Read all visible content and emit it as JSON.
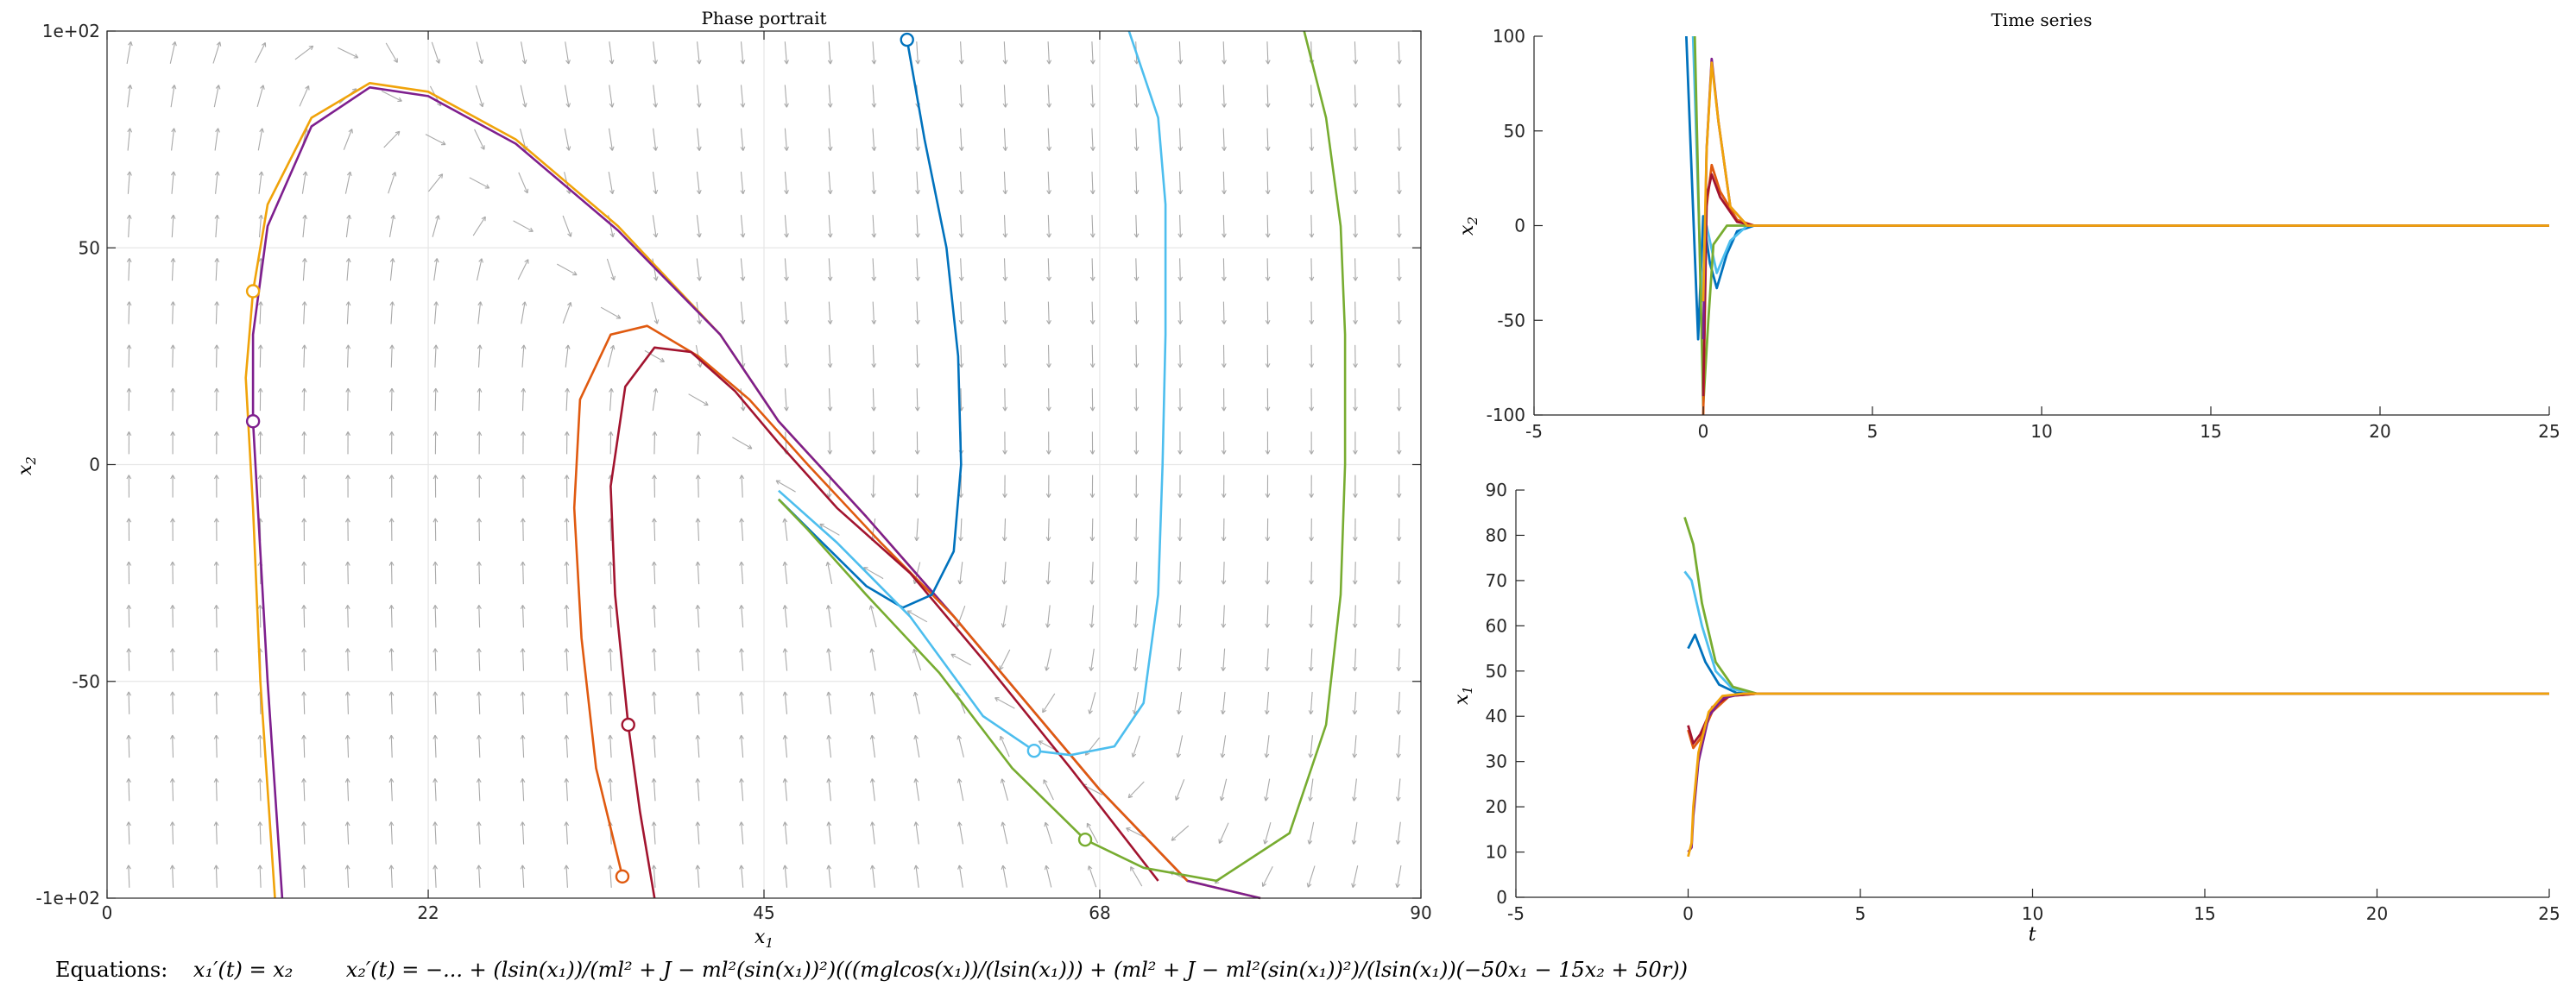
{
  "chart_data": [
    {
      "type": "line",
      "title": "Phase portrait",
      "xlabel": "x1",
      "ylabel": "x2",
      "xlim": [
        0,
        90
      ],
      "ylim": [
        -100,
        100
      ],
      "x_ticks": [
        0,
        22,
        45,
        68,
        90
      ],
      "y_ticks": [
        -100,
        -50,
        0,
        50,
        100
      ],
      "x_tick_labels": [
        "0",
        "22",
        "45",
        "68",
        "90"
      ],
      "y_tick_labels": [
        "-1e+02",
        "-50",
        "0",
        "50",
        "1e+02"
      ],
      "grid": true,
      "vector_field": true,
      "series": [
        {
          "color": "#f0a30a",
          "start": [
            10,
            40
          ],
          "points": [
            [
              11.5,
              -100
            ],
            [
              10.5,
              -50
            ],
            [
              10,
              -10
            ],
            [
              9.5,
              20
            ],
            [
              10,
              40
            ],
            [
              11,
              60
            ],
            [
              14,
              80
            ],
            [
              18,
              88
            ],
            [
              22,
              86
            ],
            [
              28,
              75
            ],
            [
              35,
              55
            ],
            [
              42,
              30
            ],
            [
              46,
              10
            ],
            [
              52,
              -12
            ],
            [
              58,
              -35
            ],
            [
              63,
              -55
            ],
            [
              68,
              -75
            ],
            [
              74,
              -96
            ],
            [
              79,
              -100
            ]
          ]
        },
        {
          "color": "#7e1f8e",
          "start": [
            10,
            10
          ],
          "points": [
            [
              12,
              -100
            ],
            [
              11,
              -50
            ],
            [
              10,
              10
            ],
            [
              10,
              30
            ],
            [
              11,
              55
            ],
            [
              14,
              78
            ],
            [
              18,
              87
            ],
            [
              22,
              85
            ],
            [
              28,
              74
            ],
            [
              35,
              54
            ],
            [
              42,
              30
            ],
            [
              46,
              10
            ],
            [
              52,
              -12
            ],
            [
              58,
              -35
            ],
            [
              63,
              -55
            ],
            [
              68,
              -75
            ],
            [
              74,
              -96
            ],
            [
              79,
              -100
            ]
          ]
        },
        {
          "color": "#e05a10",
          "start": [
            35.3,
            -95
          ],
          "points": [
            [
              35.3,
              -95
            ],
            [
              33.5,
              -70
            ],
            [
              32.5,
              -40
            ],
            [
              32,
              -10
            ],
            [
              32.4,
              15
            ],
            [
              34.5,
              30
            ],
            [
              37,
              32
            ],
            [
              40.5,
              25
            ],
            [
              44,
              15
            ],
            [
              48,
              0
            ],
            [
              53,
              -18
            ],
            [
              58,
              -35
            ],
            [
              63,
              -55
            ],
            [
              68,
              -75
            ],
            [
              74,
              -96
            ]
          ]
        },
        {
          "color": "#a2142f",
          "start": [
            35.7,
            -60
          ],
          "points": [
            [
              37.5,
              -100
            ],
            [
              36.5,
              -80
            ],
            [
              35.7,
              -60
            ],
            [
              34.8,
              -30
            ],
            [
              34.5,
              -5
            ],
            [
              35.5,
              18
            ],
            [
              37.5,
              27
            ],
            [
              40,
              26
            ],
            [
              43,
              17
            ],
            [
              46,
              5
            ],
            [
              50,
              -10
            ],
            [
              55,
              -25
            ],
            [
              60,
              -45
            ],
            [
              66,
              -70
            ],
            [
              72,
              -96
            ]
          ]
        },
        {
          "color": "#0072bd",
          "start": [
            54.8,
            98
          ],
          "points": [
            [
              54.8,
              98
            ],
            [
              56,
              75
            ],
            [
              57.5,
              50
            ],
            [
              58.3,
              25
            ],
            [
              58.5,
              0
            ],
            [
              58,
              -20
            ],
            [
              56.5,
              -30
            ],
            [
              54.5,
              -33
            ],
            [
              52,
              -28
            ],
            [
              49,
              -18
            ],
            [
              46,
              -8
            ]
          ]
        },
        {
          "color": "#4dbeee",
          "start": [
            63.5,
            -66
          ],
          "points": [
            [
              70,
              100
            ],
            [
              72,
              80
            ],
            [
              72.5,
              60
            ],
            [
              72.5,
              30
            ],
            [
              72.3,
              0
            ],
            [
              72,
              -30
            ],
            [
              71,
              -55
            ],
            [
              69,
              -65
            ],
            [
              66,
              -67
            ],
            [
              63.5,
              -66
            ],
            [
              60,
              -58
            ],
            [
              55,
              -35
            ],
            [
              50,
              -18
            ],
            [
              46,
              -6
            ]
          ]
        },
        {
          "color": "#77ac30",
          "start": [
            67,
            -86.5
          ],
          "points": [
            [
              82,
              100
            ],
            [
              83.5,
              80
            ],
            [
              84.5,
              55
            ],
            [
              84.8,
              30
            ],
            [
              84.8,
              0
            ],
            [
              84.5,
              -30
            ],
            [
              83.5,
              -60
            ],
            [
              81,
              -85
            ],
            [
              76,
              -96
            ],
            [
              71,
              -93
            ],
            [
              67,
              -86.5
            ],
            [
              62,
              -70
            ],
            [
              57,
              -48
            ],
            [
              52,
              -30
            ],
            [
              48,
              -15
            ],
            [
              46,
              -8
            ]
          ]
        }
      ]
    },
    {
      "type": "line",
      "title": "Time series",
      "xlabel": "",
      "ylabel": "x2",
      "xlim": [
        -5,
        25
      ],
      "ylim": [
        -100,
        100
      ],
      "x_ticks": [
        -5,
        0,
        5,
        10,
        15,
        20,
        25
      ],
      "y_ticks": [
        -100,
        -50,
        0,
        50,
        100
      ],
      "grid": false,
      "series": [
        {
          "color": "#0072bd",
          "points": [
            [
              -0.5,
              100
            ],
            [
              -0.15,
              -60
            ],
            [
              0,
              5
            ],
            [
              0.2,
              -20
            ],
            [
              0.4,
              -33
            ],
            [
              0.7,
              -15
            ],
            [
              1.0,
              -3
            ],
            [
              1.5,
              0
            ],
            [
              25,
              0
            ]
          ]
        },
        {
          "color": "#4dbeee",
          "points": [
            [
              -0.3,
              100
            ],
            [
              -0.05,
              -40
            ],
            [
              0.1,
              0
            ],
            [
              0.4,
              -25
            ],
            [
              0.8,
              -8
            ],
            [
              1.3,
              0
            ],
            [
              25,
              0
            ]
          ]
        },
        {
          "color": "#77ac30",
          "points": [
            [
              -0.25,
              100
            ],
            [
              0.0,
              -95
            ],
            [
              0.15,
              -50
            ],
            [
              0.3,
              -10
            ],
            [
              0.7,
              0
            ],
            [
              25,
              0
            ]
          ]
        },
        {
          "color": "#e05a10",
          "points": [
            [
              0.0,
              -100
            ],
            [
              0.1,
              10
            ],
            [
              0.25,
              32
            ],
            [
              0.5,
              18
            ],
            [
              1.0,
              3
            ],
            [
              1.5,
              0
            ],
            [
              25,
              0
            ]
          ]
        },
        {
          "color": "#a2142f",
          "points": [
            [
              0.0,
              -90
            ],
            [
              0.1,
              15
            ],
            [
              0.25,
              27
            ],
            [
              0.5,
              15
            ],
            [
              1.0,
              2
            ],
            [
              1.5,
              0
            ],
            [
              25,
              0
            ]
          ]
        },
        {
          "color": "#7e1f8e",
          "points": [
            [
              0.0,
              -60
            ],
            [
              0.1,
              40
            ],
            [
              0.25,
              88
            ],
            [
              0.45,
              55
            ],
            [
              0.8,
              10
            ],
            [
              1.3,
              0
            ],
            [
              25,
              0
            ]
          ]
        },
        {
          "color": "#f0a30a",
          "points": [
            [
              0.0,
              -40
            ],
            [
              0.1,
              40
            ],
            [
              0.25,
              86
            ],
            [
              0.45,
              55
            ],
            [
              0.8,
              10
            ],
            [
              1.3,
              0
            ],
            [
              25,
              0
            ]
          ]
        }
      ]
    },
    {
      "type": "line",
      "title": "",
      "xlabel": "t",
      "ylabel": "x1",
      "xlim": [
        -5,
        25
      ],
      "ylim": [
        0,
        90
      ],
      "x_ticks": [
        -5,
        0,
        5,
        10,
        15,
        20,
        25
      ],
      "y_ticks": [
        0,
        10,
        20,
        30,
        40,
        50,
        60,
        70,
        80,
        90
      ],
      "grid": false,
      "series": [
        {
          "color": "#0072bd",
          "points": [
            [
              0,
              55
            ],
            [
              0.2,
              58
            ],
            [
              0.5,
              52
            ],
            [
              0.9,
              47
            ],
            [
              1.4,
              45.2
            ],
            [
              2,
              45
            ],
            [
              25,
              45
            ]
          ]
        },
        {
          "color": "#4dbeee",
          "points": [
            [
              -0.1,
              72
            ],
            [
              0.1,
              70
            ],
            [
              0.4,
              60
            ],
            [
              0.8,
              50
            ],
            [
              1.3,
              46
            ],
            [
              2,
              45
            ],
            [
              25,
              45
            ]
          ]
        },
        {
          "color": "#77ac30",
          "points": [
            [
              -0.1,
              84
            ],
            [
              0.15,
              78
            ],
            [
              0.4,
              65
            ],
            [
              0.8,
              52
            ],
            [
              1.3,
              46.5
            ],
            [
              2,
              45
            ],
            [
              25,
              45
            ]
          ]
        },
        {
          "color": "#e05a10",
          "points": [
            [
              0,
              37
            ],
            [
              0.15,
              33
            ],
            [
              0.35,
              35
            ],
            [
              0.7,
              41
            ],
            [
              1.2,
              44.5
            ],
            [
              2,
              45
            ],
            [
              25,
              45
            ]
          ]
        },
        {
          "color": "#a2142f",
          "points": [
            [
              0,
              38
            ],
            [
              0.15,
              34
            ],
            [
              0.35,
              36
            ],
            [
              0.7,
              42
            ],
            [
              1.2,
              44.5
            ],
            [
              2,
              45
            ],
            [
              25,
              45
            ]
          ]
        },
        {
          "color": "#7e1f8e",
          "points": [
            [
              0,
              10
            ],
            [
              0.1,
              11
            ],
            [
              0.15,
              18
            ],
            [
              0.3,
              30
            ],
            [
              0.6,
              40
            ],
            [
              1.0,
              44
            ],
            [
              1.6,
              45
            ],
            [
              25,
              45
            ]
          ]
        },
        {
          "color": "#f0a30a",
          "points": [
            [
              0,
              9
            ],
            [
              0.1,
              12
            ],
            [
              0.15,
              20
            ],
            [
              0.3,
              32
            ],
            [
              0.6,
              41
            ],
            [
              1.0,
              44.5
            ],
            [
              1.6,
              45
            ],
            [
              25,
              45
            ]
          ]
        }
      ]
    }
  ],
  "equation": {
    "label": "Equations:",
    "eq1": "x₁′(t) = x₂",
    "eq2": "x₂′(t) = −... + (lsin(x₁))/(ml² + J − ml²(sin(x₁))²)(((mglcos(x₁))/(lsin(x₁))) + (ml² + J − ml²(sin(x₁))²)/(lsin(x₁))(−50x₁ − 15x₂ + 50r))"
  }
}
